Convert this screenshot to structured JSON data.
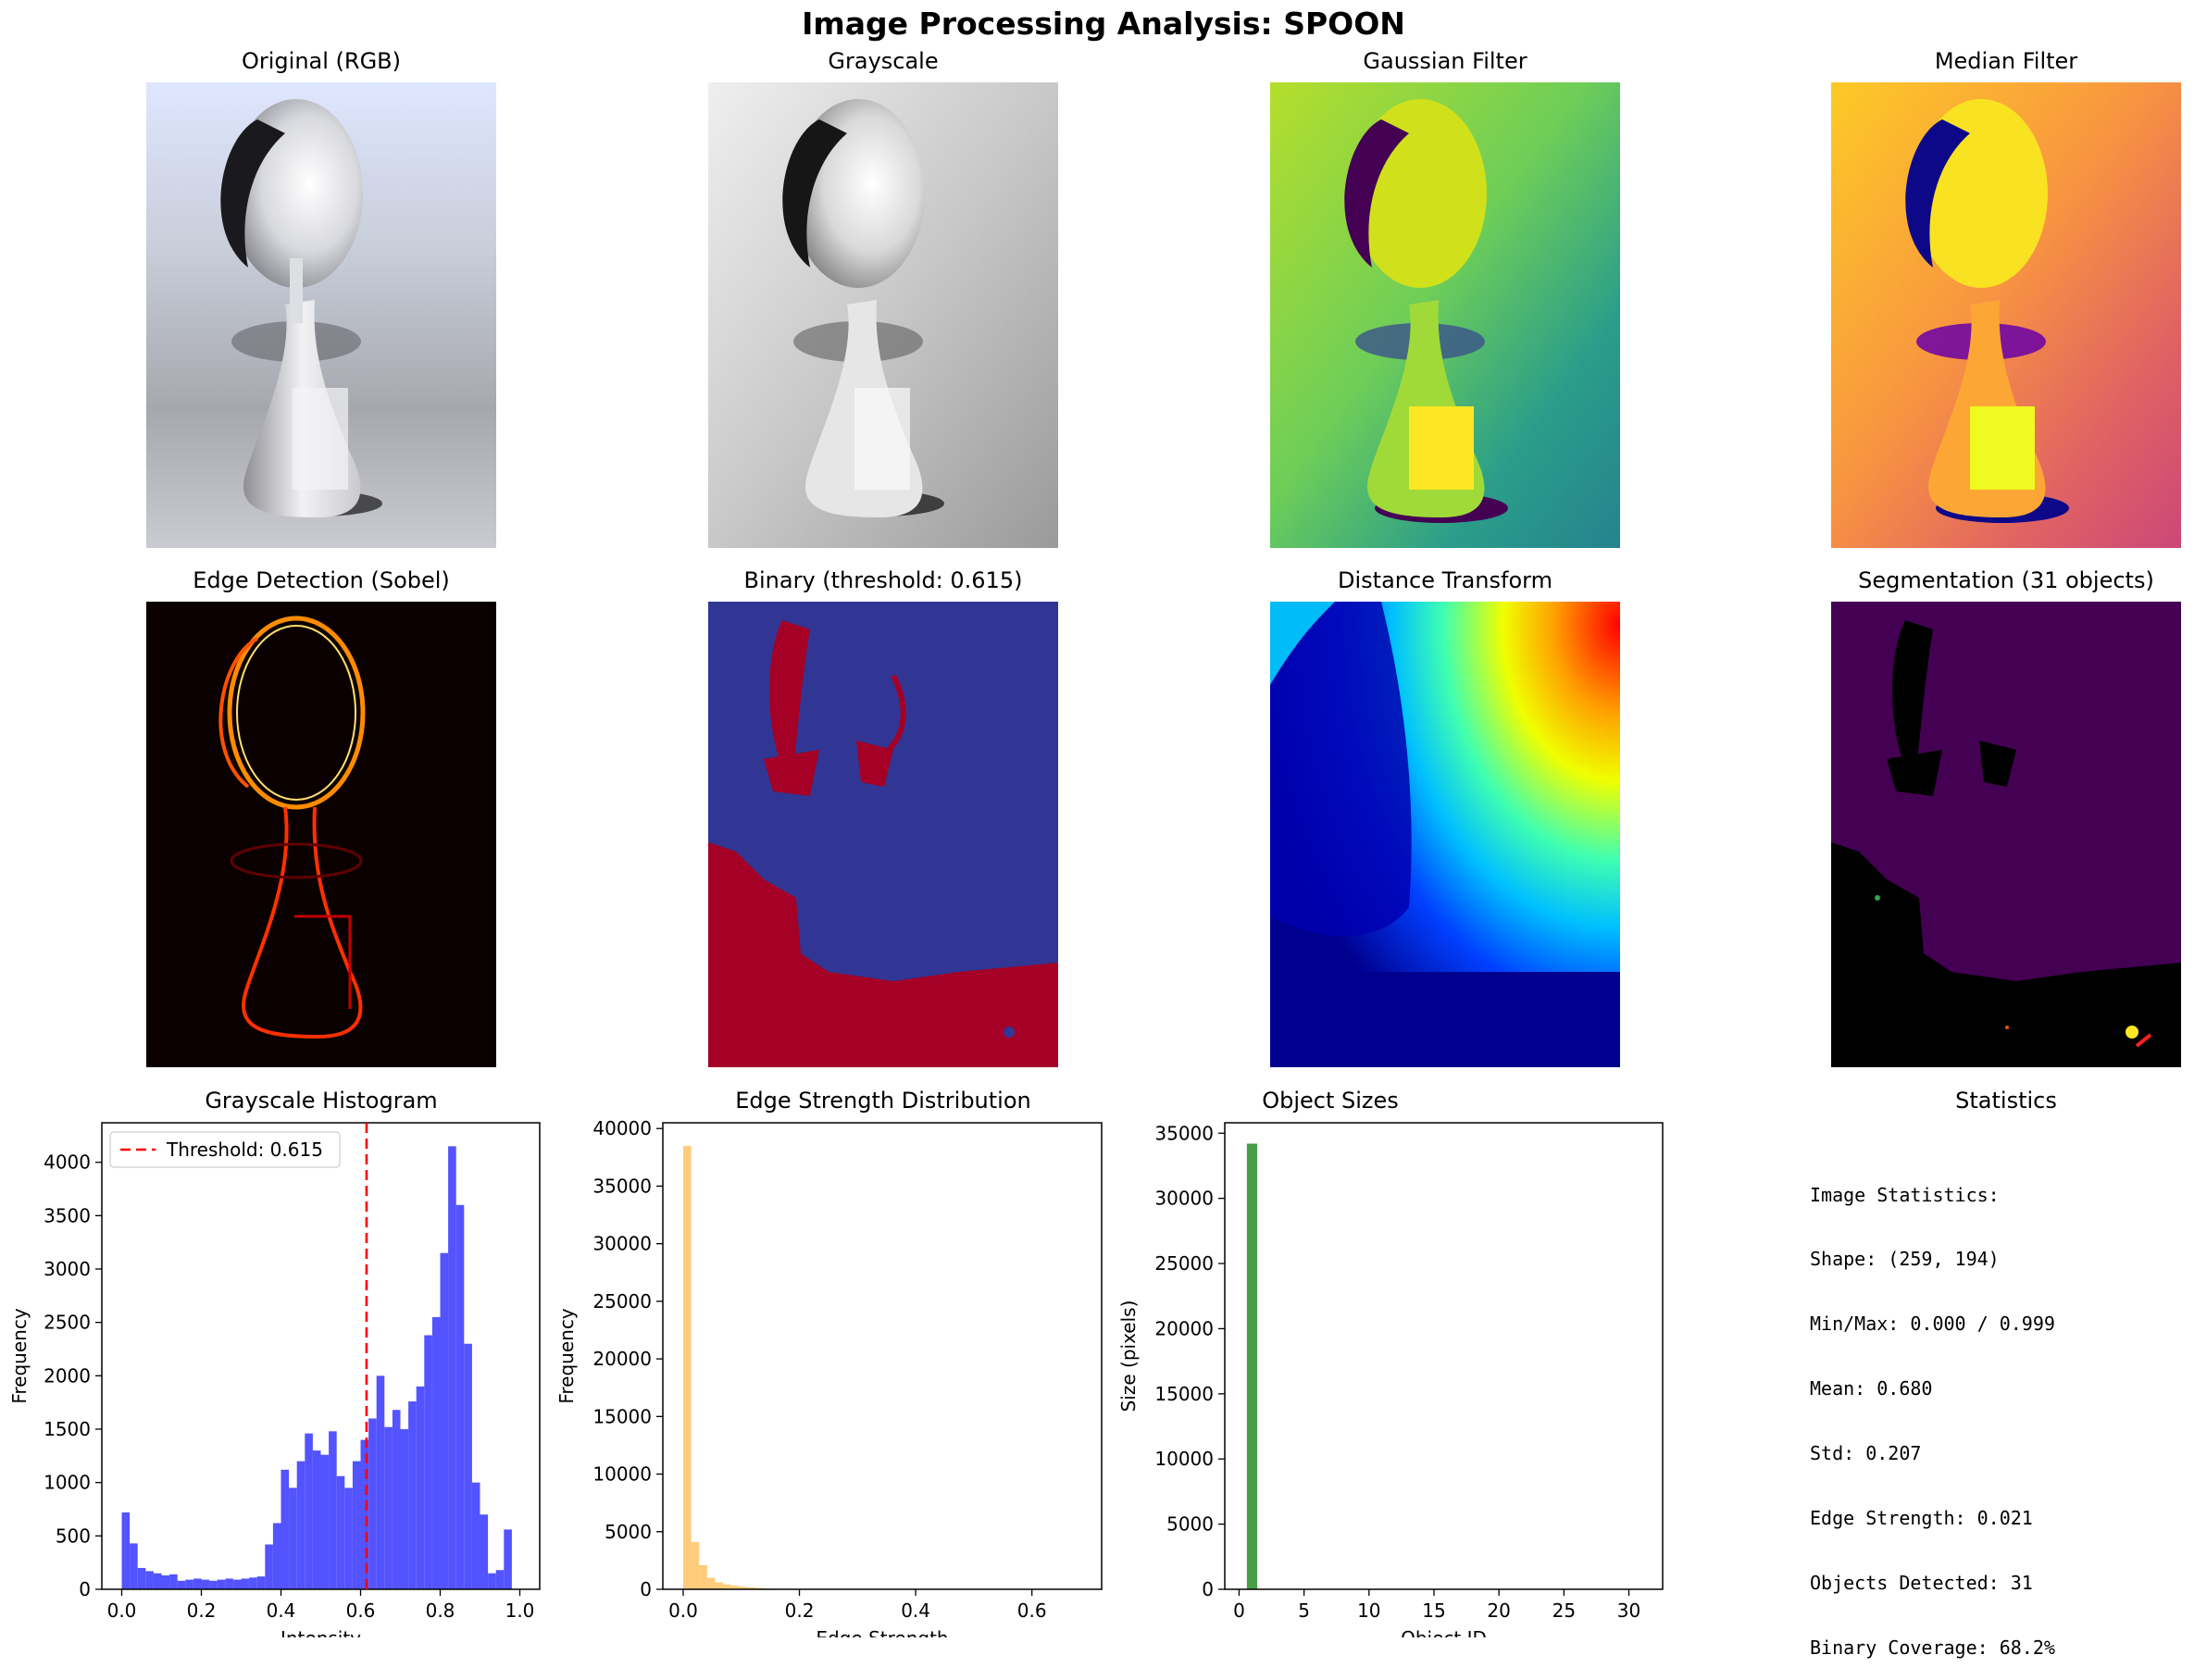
{
  "title": "Image Processing Analysis: SPOON",
  "panels": {
    "original": "Original (RGB)",
    "grayscale": "Grayscale",
    "gaussian": "Gaussian Filter",
    "median": "Median Filter",
    "edge": "Edge Detection (Sobel)",
    "binary": "Binary (threshold: 0.615)",
    "distance": "Distance Transform",
    "segmentation": "Segmentation (31 objects)",
    "statistics": "Statistics"
  },
  "colors": {
    "histogram": "#4a4aff",
    "threshold_line": "#ff0000",
    "edge_hist": "#ffb84a",
    "object_bar": "#3c9a3c"
  },
  "chart_data": [
    {
      "type": "bar",
      "title": "Grayscale Histogram",
      "xlabel": "Intensity",
      "ylabel": "Frequency",
      "xlim": [
        -0.05,
        1.05
      ],
      "ylim": [
        0,
        4370
      ],
      "xticks": [
        "0.0",
        "0.2",
        "0.4",
        "0.6",
        "0.8",
        "1.0"
      ],
      "yticks": [
        "0",
        "500",
        "1000",
        "1500",
        "2000",
        "2500",
        "3000",
        "3500",
        "4000"
      ],
      "bin_width": 0.02,
      "bin_starts": [
        0.0,
        0.02,
        0.04,
        0.06,
        0.08,
        0.1,
        0.12,
        0.14,
        0.16,
        0.18,
        0.2,
        0.22,
        0.24,
        0.26,
        0.28,
        0.3,
        0.32,
        0.34,
        0.36,
        0.38,
        0.4,
        0.42,
        0.44,
        0.46,
        0.48,
        0.5,
        0.52,
        0.54,
        0.56,
        0.58,
        0.6,
        0.62,
        0.64,
        0.66,
        0.68,
        0.7,
        0.72,
        0.74,
        0.76,
        0.78,
        0.8,
        0.82,
        0.84,
        0.86,
        0.88,
        0.9,
        0.92,
        0.94,
        0.96,
        0.98
      ],
      "values": [
        720,
        430,
        200,
        170,
        150,
        130,
        140,
        80,
        90,
        100,
        90,
        80,
        90,
        100,
        90,
        100,
        110,
        120,
        420,
        620,
        1120,
        950,
        1200,
        1460,
        1300,
        1260,
        1480,
        1060,
        950,
        1200,
        1400,
        1600,
        2000,
        1520,
        1680,
        1500,
        1760,
        1900,
        2380,
        2550,
        3150,
        4150,
        3600,
        2300,
        1000,
        700,
        150,
        180,
        560,
        0
      ],
      "threshold": 0.615,
      "legend": "Threshold: 0.615",
      "legend_position": "top-left"
    },
    {
      "type": "bar",
      "title": "Edge Strength Distribution",
      "xlabel": "Edge Strength",
      "ylabel": "Frequency",
      "xlim": [
        -0.035,
        0.72
      ],
      "ylim": [
        0,
        40500
      ],
      "xticks": [
        "0.0",
        "0.2",
        "0.4",
        "0.6"
      ],
      "yticks": [
        "0",
        "5000",
        "10000",
        "15000",
        "20000",
        "25000",
        "30000",
        "35000",
        "40000"
      ],
      "bin_width": 0.0137,
      "bin_starts": [
        0.0,
        0.0137,
        0.0274,
        0.0411,
        0.0548,
        0.0685,
        0.0822,
        0.0959,
        0.1096,
        0.1233,
        0.137,
        0.1507,
        0.1644,
        0.1781,
        0.1918
      ],
      "values": [
        38500,
        4100,
        2100,
        1000,
        600,
        420,
        320,
        230,
        170,
        120,
        90,
        60,
        40,
        25,
        15
      ]
    },
    {
      "type": "bar",
      "title": "Object Sizes",
      "xlabel": "Object ID",
      "ylabel": "Size (pixels)",
      "xlim": [
        -1.1,
        32.6
      ],
      "ylim": [
        0,
        35800
      ],
      "xticks": [
        "0",
        "5",
        "10",
        "15",
        "20",
        "25",
        "30"
      ],
      "yticks": [
        "0",
        "5000",
        "10000",
        "15000",
        "20000",
        "25000",
        "30000",
        "35000"
      ],
      "categories": [
        1,
        2,
        3,
        4,
        5,
        6,
        7,
        8,
        9,
        10,
        11,
        12,
        13,
        14,
        15,
        16,
        17,
        18,
        19,
        20,
        21,
        22,
        23,
        24,
        25,
        26,
        27,
        28,
        29,
        30,
        31
      ],
      "values": [
        34200,
        3,
        4,
        2,
        5,
        3,
        6,
        2,
        4,
        3,
        2,
        5,
        3,
        4,
        2,
        3,
        6,
        2,
        3,
        4,
        2,
        5,
        3,
        2,
        4,
        3,
        2,
        5,
        3,
        20,
        9
      ]
    }
  ],
  "statistics": {
    "heading": "Image Statistics:",
    "shape": "Shape: (259, 194)",
    "minmax": "Min/Max: 0.000 / 0.999",
    "mean": "Mean: 0.680",
    "std": "Std: 0.207",
    "edge_strength": "Edge Strength: 0.021",
    "objects": "Objects Detected: 31",
    "coverage": "Binary Coverage: 68.2%"
  }
}
